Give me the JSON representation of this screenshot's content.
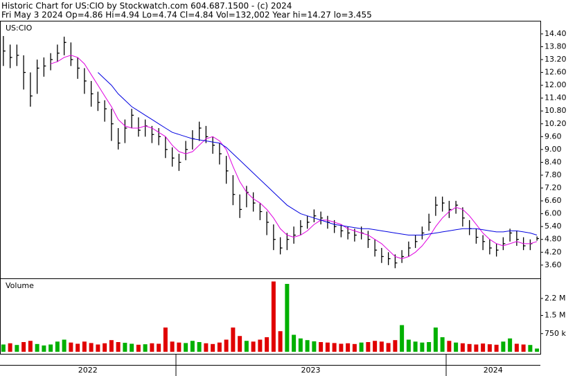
{
  "header": {
    "title": "Historic Chart for US:CIO by Stockwatch.com 604.687.1500 - (c) 2024",
    "quote": "Fri May  3 2024  Op=4.86  Hi=4.94  Lo=4.74  Cl=4.84  Vol=132,002  Year hi=14.27  lo=3.455"
  },
  "chart_data": [
    {
      "type": "ohlc",
      "label": "US:CIO",
      "bar_color": "#000000",
      "xlim": [
        0,
        80
      ],
      "xticks": [
        {
          "value": 0,
          "label": "2022"
        },
        {
          "value": 26,
          "label": "2023"
        },
        {
          "value": 66,
          "label": "2024"
        }
      ],
      "ylim": [
        2.98,
        14.98
      ],
      "yticks": [
        {
          "value": 3.6,
          "label": "3.60"
        },
        {
          "value": 4.2,
          "label": "4.20"
        },
        {
          "value": 4.8,
          "label": "4.80"
        },
        {
          "value": 5.4,
          "label": "5.40"
        },
        {
          "value": 6,
          "label": "6.00"
        },
        {
          "value": 6.6,
          "label": "6.60"
        },
        {
          "value": 7.2,
          "label": "7.20"
        },
        {
          "value": 7.8,
          "label": "7.80"
        },
        {
          "value": 8.4,
          "label": "8.40"
        },
        {
          "value": 9,
          "label": "9.00"
        },
        {
          "value": 9.6,
          "label": "9.60"
        },
        {
          "value": 10.2,
          "label": "10.20"
        },
        {
          "value": 10.8,
          "label": "10.80"
        },
        {
          "value": 11.4,
          "label": "11.40"
        },
        {
          "value": 12,
          "label": "12.00"
        },
        {
          "value": 12.6,
          "label": "12.60"
        },
        {
          "value": 13.2,
          "label": "13.20"
        },
        {
          "value": 13.8,
          "label": "13.80"
        },
        {
          "value": 14.4,
          "label": "14.40"
        }
      ],
      "high": [
        14.3,
        13.9,
        13.9,
        13.4,
        12.6,
        13.2,
        13.3,
        13.5,
        13.9,
        14.27,
        14.0,
        13.3,
        12.8,
        12.2,
        11.7,
        11.3,
        10.9,
        10.0,
        10.4,
        10.9,
        10.5,
        10.4,
        10.1,
        10.0,
        9.6,
        9.1,
        8.8,
        9.4,
        9.9,
        10.3,
        10.1,
        9.6,
        9.3,
        8.7,
        7.8,
        6.9,
        7.3,
        7.0,
        6.5,
        6.1,
        5.5,
        4.9,
        5.1,
        5.4,
        5.7,
        5.9,
        6.2,
        6.1,
        5.9,
        5.7,
        5.5,
        5.4,
        5.3,
        5.4,
        5.2,
        4.8,
        4.4,
        4.2,
        4.1,
        4.3,
        4.7,
        5.0,
        5.4,
        6.0,
        6.8,
        6.8,
        6.6,
        6.6,
        6.3,
        5.7,
        5.3,
        5.0,
        4.8,
        4.6,
        4.9,
        5.3,
        5.2,
        4.9,
        4.8,
        4.94
      ],
      "low": [
        12.9,
        12.8,
        12.9,
        11.8,
        11.0,
        11.6,
        12.4,
        12.7,
        13.1,
        13.4,
        12.9,
        12.3,
        11.6,
        11.0,
        10.8,
        10.3,
        9.4,
        9.0,
        9.3,
        10.0,
        9.6,
        9.6,
        9.3,
        9.2,
        8.6,
        8.2,
        8.0,
        8.5,
        9.0,
        9.4,
        9.3,
        8.8,
        8.3,
        7.4,
        6.4,
        5.8,
        6.3,
        6.1,
        5.7,
        5.0,
        4.3,
        4.1,
        4.3,
        4.6,
        5.0,
        5.3,
        5.6,
        5.5,
        5.3,
        5.1,
        4.9,
        4.8,
        4.7,
        4.8,
        4.4,
        4.0,
        3.7,
        3.6,
        3.455,
        3.7,
        4.0,
        4.4,
        4.8,
        5.2,
        5.9,
        6.1,
        5.8,
        6.0,
        5.4,
        5.0,
        4.6,
        4.3,
        4.1,
        4.0,
        4.3,
        4.7,
        4.5,
        4.3,
        4.3,
        4.74
      ],
      "close": [
        13.6,
        13.3,
        13.4,
        12.6,
        11.5,
        12.8,
        12.9,
        13.2,
        13.5,
        14.0,
        13.2,
        12.8,
        12.2,
        11.6,
        11.2,
        10.9,
        10.2,
        9.3,
        10.0,
        10.6,
        9.9,
        10.1,
        9.7,
        9.6,
        9.0,
        8.6,
        8.4,
        9.0,
        9.5,
        10.0,
        9.6,
        9.2,
        8.8,
        8.0,
        6.9,
        6.2,
        7.0,
        6.5,
        6.1,
        5.6,
        4.8,
        4.4,
        4.8,
        5.0,
        5.4,
        5.6,
        5.9,
        5.8,
        5.6,
        5.4,
        5.2,
        5.1,
        5.0,
        5.1,
        4.8,
        4.3,
        4.0,
        3.9,
        3.7,
        4.0,
        4.4,
        4.7,
        5.1,
        5.6,
        6.4,
        6.5,
        6.2,
        6.4,
        5.8,
        5.3,
        4.9,
        4.7,
        4.4,
        4.3,
        4.6,
        5.1,
        4.8,
        4.5,
        4.6,
        4.84
      ],
      "series": [
        {
          "color": "#e000e0",
          "values": [
            null,
            null,
            null,
            null,
            null,
            null,
            null,
            13.0,
            13.1,
            13.3,
            13.4,
            13.3,
            13.0,
            12.5,
            12.0,
            11.5,
            11.0,
            10.4,
            10.1,
            10.0,
            10.0,
            10.1,
            10.0,
            9.8,
            9.6,
            9.2,
            8.9,
            8.8,
            8.9,
            9.2,
            9.5,
            9.6,
            9.4,
            9.0,
            8.2,
            7.5,
            7.0,
            6.7,
            6.5,
            6.2,
            5.8,
            5.3,
            5.0,
            4.9,
            5.0,
            5.2,
            5.5,
            5.7,
            5.7,
            5.6,
            5.5,
            5.3,
            5.2,
            5.1,
            5.0,
            4.8,
            4.6,
            4.3,
            4.0,
            3.9,
            4.0,
            4.2,
            4.5,
            4.9,
            5.4,
            5.8,
            6.1,
            6.3,
            6.2,
            5.9,
            5.5,
            5.1,
            4.8,
            4.6,
            4.5,
            4.6,
            4.7,
            4.6,
            4.6,
            4.7
          ]
        },
        {
          "color": "#0000e0",
          "values": [
            null,
            null,
            null,
            null,
            null,
            null,
            null,
            null,
            null,
            null,
            null,
            null,
            null,
            null,
            12.6,
            12.3,
            12.0,
            11.6,
            11.3,
            11.0,
            10.8,
            10.6,
            10.4,
            10.2,
            10.0,
            9.8,
            9.7,
            9.6,
            9.5,
            9.45,
            9.4,
            9.35,
            9.3,
            9.1,
            8.8,
            8.5,
            8.2,
            7.9,
            7.6,
            7.3,
            7.0,
            6.7,
            6.4,
            6.2,
            6.0,
            5.9,
            5.8,
            5.7,
            5.6,
            5.5,
            5.45,
            5.4,
            5.35,
            5.3,
            5.3,
            5.25,
            5.2,
            5.15,
            5.1,
            5.05,
            5.0,
            5.0,
            5.0,
            5.05,
            5.1,
            5.15,
            5.2,
            5.25,
            5.3,
            5.3,
            5.3,
            5.25,
            5.2,
            5.15,
            5.15,
            5.2,
            5.2,
            5.15,
            5.1,
            5.0
          ]
        }
      ]
    },
    {
      "type": "volume",
      "label": "Volume",
      "up_color": "#00b000",
      "down_color": "#e00000",
      "ylim": [
        0,
        3000000
      ],
      "yticks": [
        {
          "value": 750000,
          "label": "750 k"
        },
        {
          "value": 1500000,
          "label": "1.5 M"
        },
        {
          "value": 2200000,
          "label": "2.2 M"
        }
      ],
      "values": [
        300000,
        350000,
        280000,
        400000,
        450000,
        320000,
        260000,
        300000,
        420000,
        500000,
        380000,
        330000,
        420000,
        360000,
        300000,
        350000,
        480000,
        400000,
        370000,
        330000,
        290000,
        310000,
        350000,
        330000,
        1000000,
        420000,
        380000,
        360000,
        450000,
        400000,
        350000,
        320000,
        380000,
        500000,
        1000000,
        650000,
        450000,
        420000,
        500000,
        600000,
        2900000,
        850000,
        2800000,
        700000,
        550000,
        480000,
        430000,
        400000,
        380000,
        360000,
        330000,
        350000,
        320000,
        380000,
        400000,
        450000,
        420000,
        360000,
        480000,
        1100000,
        500000,
        420000,
        380000,
        400000,
        1000000,
        600000,
        450000,
        380000,
        350000,
        320000,
        300000,
        340000,
        310000,
        290000,
        420000,
        550000,
        330000,
        300000,
        280000,
        132002
      ]
    }
  ]
}
